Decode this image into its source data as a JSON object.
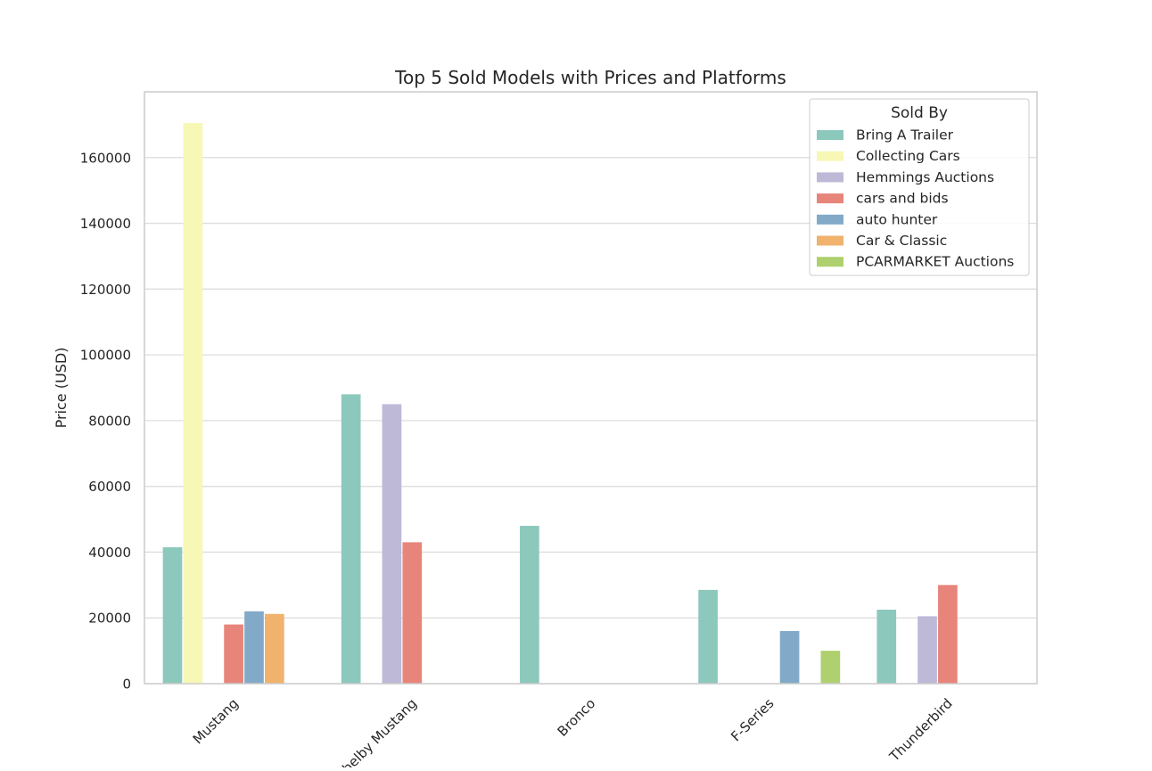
{
  "chart_data": {
    "type": "bar",
    "title": "Top 5 Sold Models with Prices and Platforms",
    "xlabel": "",
    "ylabel": "Price (USD)",
    "ylim": [
      0,
      180000
    ],
    "yticks": [
      0,
      20000,
      40000,
      60000,
      80000,
      100000,
      120000,
      140000,
      160000
    ],
    "ytick_labels": [
      "0",
      "20000",
      "40000",
      "60000",
      "80000",
      "100000",
      "120000",
      "140000",
      "160000"
    ],
    "categories": [
      "Mustang",
      "Shelby Mustang",
      "Bronco",
      "F-Series",
      "Thunderbird"
    ],
    "grid": "horizontal",
    "legend_title": "Sold By",
    "legend_position": "top-right",
    "series": [
      {
        "name": "Bring A Trailer",
        "color": "#8dc8bd",
        "values": [
          41500,
          88000,
          48000,
          28500,
          22500
        ]
      },
      {
        "name": "Collecting Cars",
        "color": "#f7f7b6",
        "values": [
          170500,
          null,
          null,
          null,
          null
        ]
      },
      {
        "name": "Hemmings Auctions",
        "color": "#bdb9d6",
        "values": [
          null,
          85000,
          null,
          null,
          20500
        ]
      },
      {
        "name": "cars and bids",
        "color": "#e8857a",
        "values": [
          18000,
          43000,
          null,
          null,
          30000
        ]
      },
      {
        "name": "auto hunter",
        "color": "#82aac8",
        "values": [
          22000,
          null,
          null,
          16000,
          null
        ]
      },
      {
        "name": "Car & Classic",
        "color": "#f0b26c",
        "values": [
          21200,
          null,
          null,
          null,
          null
        ]
      },
      {
        "name": "PCARMARKET Auctions",
        "color": "#afd06e",
        "values": [
          null,
          null,
          null,
          10000,
          null
        ]
      }
    ]
  }
}
